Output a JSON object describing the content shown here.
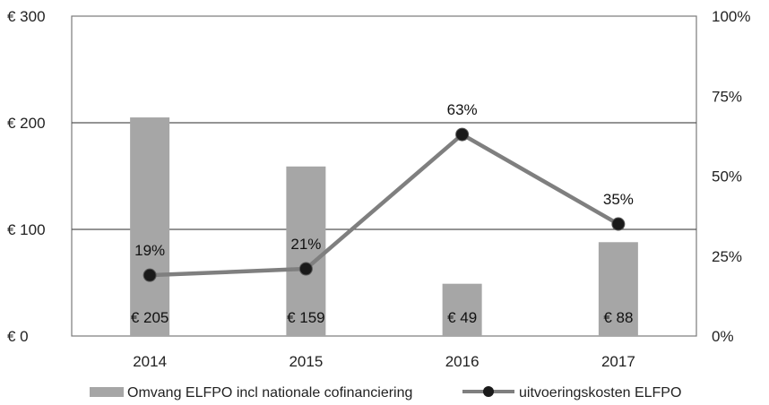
{
  "chart_data": {
    "type": "bar",
    "categories": [
      "2014",
      "2015",
      "2016",
      "2017"
    ],
    "series": [
      {
        "name": "Omvang ELFPO incl nationale cofinanciering",
        "type": "bar",
        "axis": "left",
        "values": [
          205,
          159,
          49,
          88
        ],
        "labels": [
          "€ 205",
          "€ 159",
          "€ 49",
          "€ 88"
        ],
        "color": "#a6a6a6"
      },
      {
        "name": "uitvoeringskosten ELFPO",
        "type": "line",
        "axis": "right",
        "values": [
          19,
          21,
          63,
          35
        ],
        "labels": [
          "19%",
          "21%",
          "63%",
          "35%"
        ],
        "color": "#7f7f7f",
        "marker_color": "#1a1a1a"
      }
    ],
    "y_left": {
      "ticks": [
        0,
        100,
        200,
        300
      ],
      "tick_labels": [
        "€ 0",
        "€ 100",
        "€ 200",
        "€ 300"
      ],
      "ylim": [
        0,
        300
      ]
    },
    "y_right": {
      "ticks": [
        0,
        25,
        50,
        75,
        100
      ],
      "tick_labels": [
        "0%",
        "25%",
        "50%",
        "75%",
        "100%"
      ],
      "ylim": [
        0,
        100
      ]
    },
    "grid": true,
    "legend": "bottom"
  }
}
